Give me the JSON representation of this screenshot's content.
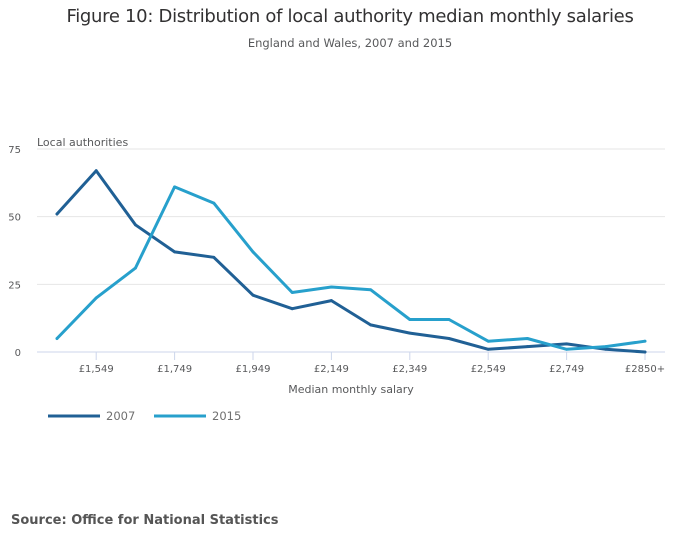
{
  "header": {
    "title": "Figure 10: Distribution of local authority median monthly salaries",
    "subtitle": "England and Wales, 2007 and 2015"
  },
  "footer": {
    "source": "Source: Office for National Statistics"
  },
  "colors": {
    "series_2007": "#206095",
    "series_2015": "#27a0cc",
    "grid": "#e6e6e6",
    "axis": "#ccd6eb"
  },
  "chart_data": {
    "type": "line",
    "title": "Figure 10: Distribution of local authority median monthly salaries",
    "subtitle": "England and Wales, 2007 and 2015",
    "xlabel": "Median monthly salary",
    "ylabel": "Local authorities",
    "ylim": [
      0,
      75
    ],
    "yticks": [
      0,
      25,
      50,
      75
    ],
    "grid": true,
    "legend_position": "bottom-left",
    "x_count": 16,
    "x_tick_labels": [
      {
        "index": 1,
        "label": "£1,549"
      },
      {
        "index": 3,
        "label": "£1,749"
      },
      {
        "index": 5,
        "label": "£1,949"
      },
      {
        "index": 7,
        "label": "£2,149"
      },
      {
        "index": 9,
        "label": "£2,349"
      },
      {
        "index": 11,
        "label": "£2,549"
      },
      {
        "index": 13,
        "label": "£2,749"
      },
      {
        "index": 15,
        "label": "£2850+"
      }
    ],
    "series": [
      {
        "name": "2007",
        "values": [
          51,
          67,
          47,
          37,
          35,
          21,
          16,
          19,
          10,
          7,
          5,
          1,
          2,
          3,
          1,
          0
        ]
      },
      {
        "name": "2015",
        "values": [
          5,
          20,
          31,
          61,
          55,
          37,
          22,
          24,
          23,
          12,
          12,
          4,
          5,
          1,
          2,
          4
        ]
      }
    ]
  }
}
